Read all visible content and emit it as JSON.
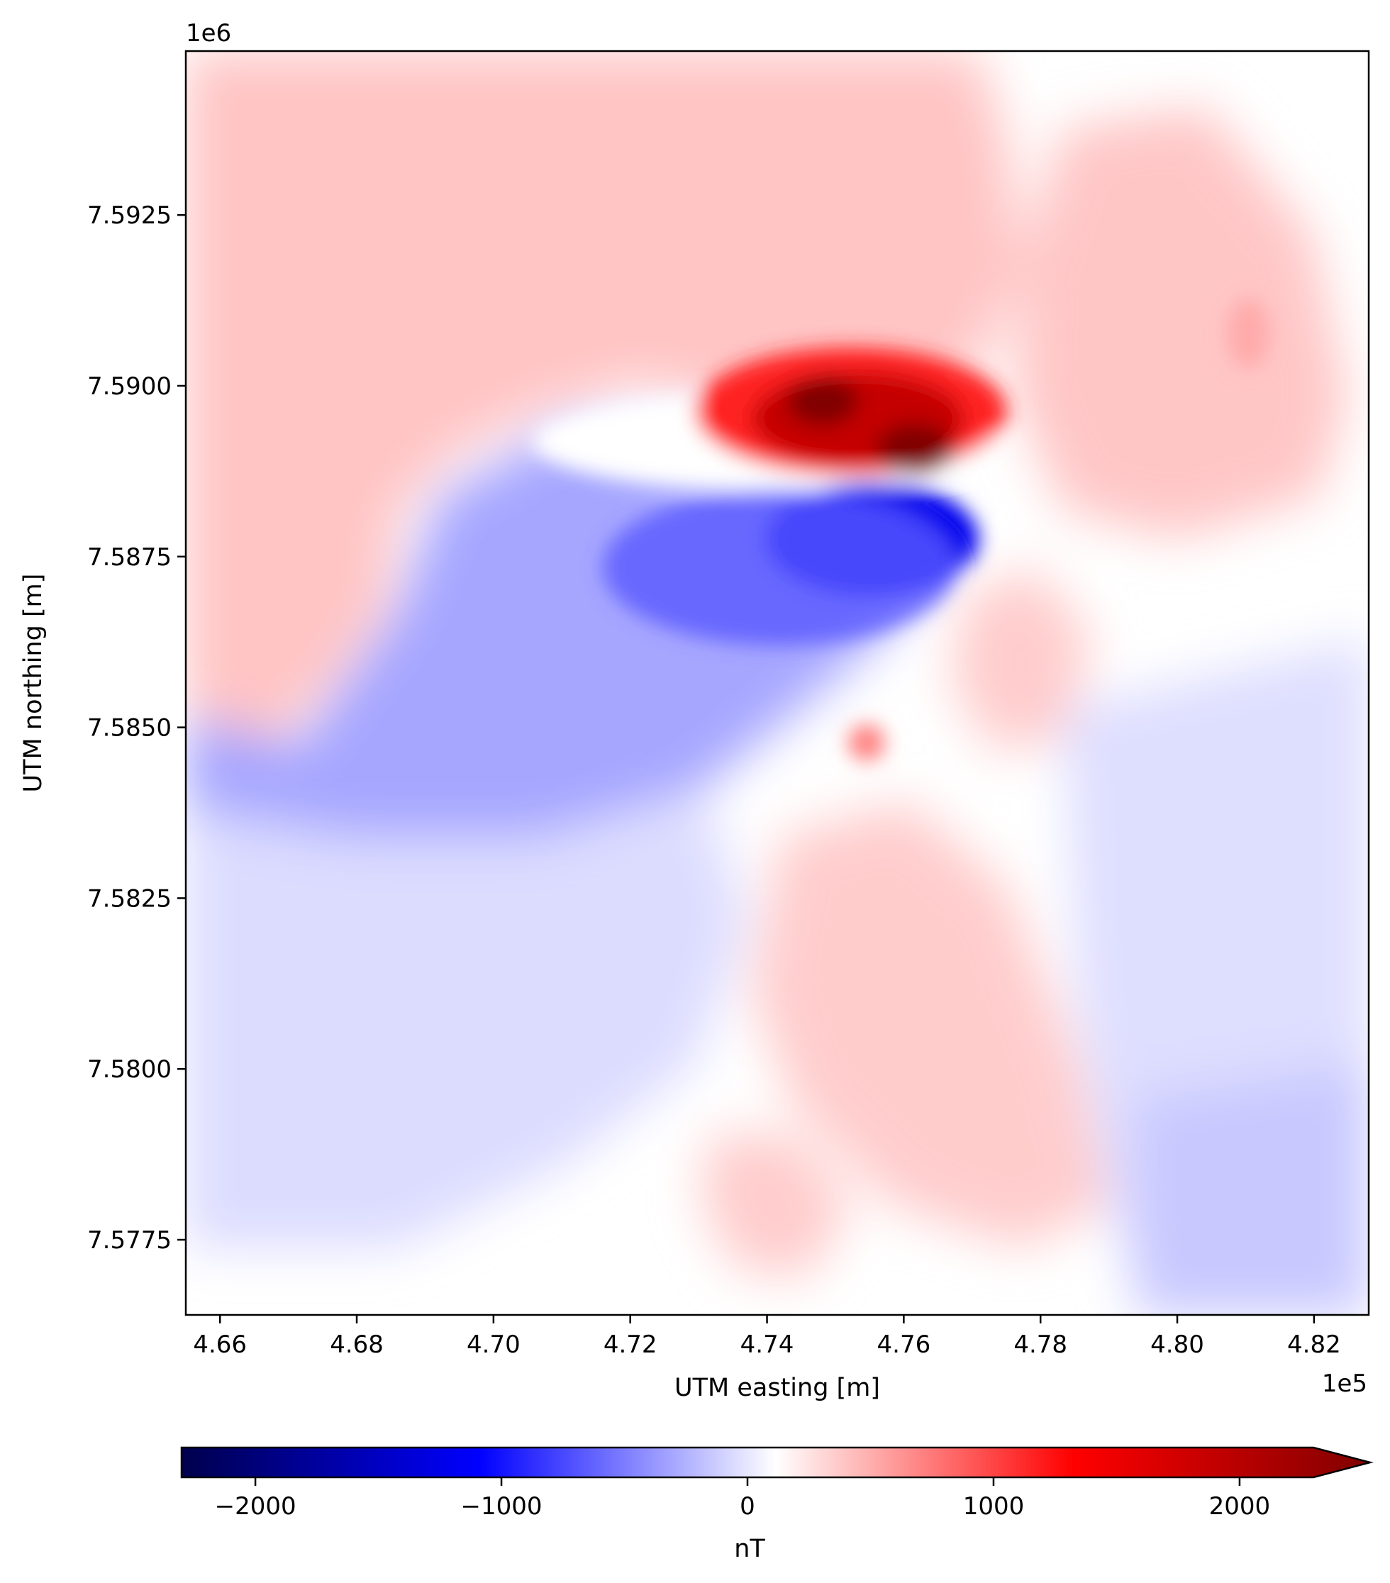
{
  "chart_data": {
    "type": "heatmap",
    "title": "",
    "xlabel": "UTM easting [m]",
    "ylabel": "UTM northing [m]",
    "x_offset_label": "1e5",
    "y_offset_label": "1e6",
    "xlim": [
      4.655,
      4.828
    ],
    "ylim": [
      7.5764,
      7.5949
    ],
    "x_ticks": [
      "4.66",
      "4.68",
      "4.70",
      "4.72",
      "4.74",
      "4.76",
      "4.78",
      "4.80",
      "4.82"
    ],
    "x_tick_values": [
      4.66,
      4.68,
      4.7,
      4.72,
      4.74,
      4.76,
      4.78,
      4.8,
      4.82
    ],
    "y_ticks": [
      "7.5925",
      "7.5900",
      "7.5875",
      "7.5850",
      "7.5825",
      "7.5800",
      "7.5775"
    ],
    "y_tick_values": [
      7.5925,
      7.59,
      7.5875,
      7.585,
      7.5825,
      7.58,
      7.5775
    ],
    "colormap": "seismic",
    "colorbar": {
      "label": "nT",
      "vmin": -2300,
      "vmax": 2300,
      "extend": "max",
      "orientation": "horizontal",
      "ticks": [
        "−2000",
        "−1000",
        "0",
        "1000",
        "2000"
      ],
      "tick_values": [
        -2000,
        -1000,
        0,
        1000,
        2000
      ]
    },
    "grid": false,
    "anomalies": [
      {
        "sign": "positive",
        "x": 4.752,
        "y": 7.58975,
        "value": 2200
      },
      {
        "sign": "positive",
        "x": 4.762,
        "y": 7.5889,
        "value": 2200
      },
      {
        "sign": "negative",
        "x": 4.755,
        "y": 7.588,
        "value": -1100
      },
      {
        "sign": "negative",
        "x": 4.715,
        "y": 7.5855,
        "value": -500
      },
      {
        "sign": "positive",
        "x": 4.76,
        "y": 7.582,
        "value": 400
      },
      {
        "sign": "positive",
        "x": 4.78,
        "y": 7.5858,
        "value": 350
      },
      {
        "sign": "positive",
        "x": 4.8,
        "y": 7.5905,
        "value": 320
      },
      {
        "sign": "positive",
        "x": 4.7,
        "y": 7.5925,
        "value": 280
      },
      {
        "sign": "positive",
        "x": 4.742,
        "y": 7.5778,
        "value": 300
      },
      {
        "sign": "negative",
        "x": 4.82,
        "y": 7.583,
        "value": -180
      }
    ]
  }
}
